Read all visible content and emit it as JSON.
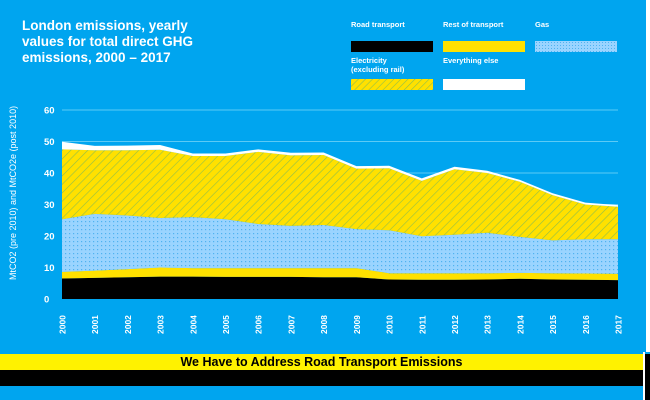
{
  "chart_data": {
    "type": "area",
    "stacked": true,
    "title": "London emissions, yearly\nvalues for total direct GHG\nemissions, 2000 – 2017",
    "ylabel": "MtCO2 (pre 2010) and MtCO2e (post 2010)",
    "xlabel": "",
    "ylim": [
      0,
      60
    ],
    "yticks": [
      "0",
      "10",
      "20",
      "30",
      "40",
      "50",
      "60"
    ],
    "grid": true,
    "legend_position": "top-right",
    "x": [
      "2000",
      "2001",
      "2002",
      "2003",
      "2004",
      "2005",
      "2006",
      "2007",
      "2008",
      "2009",
      "2010",
      "2011",
      "2012",
      "2013",
      "2014",
      "2015",
      "2016",
      "2017"
    ],
    "series": [
      {
        "name": "Road transport",
        "color": "#000000",
        "pattern": "solid",
        "values": [
          6.5,
          6.7,
          6.9,
          7.1,
          7.1,
          7.0,
          7.0,
          7.0,
          6.9,
          6.9,
          6.2,
          6.1,
          6.1,
          6.2,
          6.4,
          6.2,
          6.1,
          6.0
        ]
      },
      {
        "name": "Rest of transport",
        "color": "#ffe100",
        "pattern": "solid",
        "values": [
          2.1,
          2.3,
          2.6,
          2.9,
          2.7,
          2.8,
          2.8,
          2.8,
          2.9,
          2.9,
          2.0,
          2.1,
          2.1,
          2.0,
          1.9,
          2.0,
          2.0,
          2.0
        ]
      },
      {
        "name": "Gas",
        "color": "#9ad4ff",
        "pattern": "dots",
        "values": [
          16.7,
          18.0,
          17.0,
          15.7,
          16.2,
          15.5,
          14.0,
          13.4,
          13.7,
          12.4,
          13.6,
          11.7,
          12.2,
          12.8,
          11.4,
          10.4,
          10.9,
          11.0
        ]
      },
      {
        "name": "Electricity\n(excluding rail)",
        "color": "#ffe100",
        "pattern": "hatch",
        "values": [
          22.2,
          20.2,
          20.7,
          21.7,
          19.4,
          20.1,
          22.9,
          22.4,
          22.2,
          19.2,
          19.7,
          17.6,
          20.8,
          19.0,
          17.5,
          14.4,
          11.0,
          10.3
        ]
      },
      {
        "name": "Everything else",
        "color": "#ffffff",
        "pattern": "solid",
        "values": [
          2.4,
          1.4,
          1.5,
          1.5,
          0.8,
          0.8,
          0.8,
          0.8,
          0.8,
          0.8,
          0.8,
          0.8,
          0.8,
          0.7,
          0.6,
          0.6,
          0.6,
          0.5
        ]
      }
    ]
  },
  "banner": {
    "text": "We Have to Address Road Transport Emissions"
  },
  "colors": {
    "background": "#00a5ef",
    "gridline": "#5ccaf5",
    "hatch_line": "#8fbf4a",
    "dot": "#4fb2f0"
  }
}
